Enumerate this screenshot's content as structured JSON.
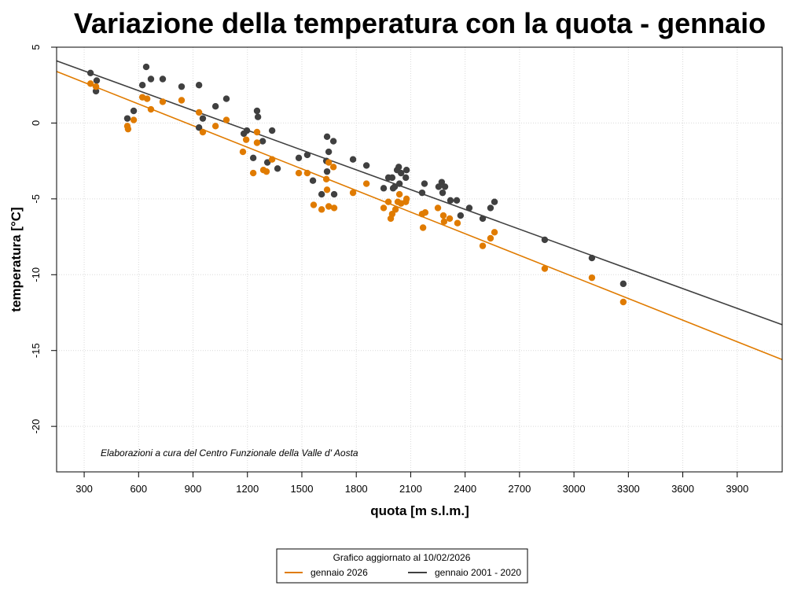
{
  "chart_data": {
    "type": "scatter",
    "title": "Variazione della temperatura con la quota -  gennaio",
    "xlabel": "quota [m s.l.m.]",
    "ylabel": "temperatura [°C]",
    "xlim": [
      148,
      4148
    ],
    "ylim": [
      -23,
      5
    ],
    "x_ticks": [
      300,
      600,
      900,
      1200,
      1500,
      1800,
      2100,
      2400,
      2700,
      3000,
      3300,
      3600,
      3900
    ],
    "y_ticks": [
      5,
      0,
      -5,
      -10,
      -15,
      -20
    ],
    "grid": true,
    "annotation": "Elaborazioni a cura del Centro Funzionale della Valle d' Aosta",
    "legend": {
      "placement": "bottom-center",
      "title": "Grafico aggiornato al 10/02/2026",
      "entries": [
        {
          "label": "gennaio 2026",
          "color": "#E07B00"
        },
        {
          "label": "gennaio 2001 - 2020",
          "color": "#404040"
        }
      ]
    },
    "series": [
      {
        "name": "gennaio 2001 - 2020",
        "color": "#404040",
        "trend_line": {
          "x": [
            148,
            4148
          ],
          "y": [
            4.1,
            -13.3
          ]
        },
        "points": [
          [
            335,
            3.3
          ],
          [
            369,
            2.8
          ],
          [
            365,
            2.1
          ],
          [
            538,
            0.3
          ],
          [
            573,
            0.8
          ],
          [
            642,
            3.7
          ],
          [
            621,
            2.5
          ],
          [
            668,
            2.9
          ],
          [
            733,
            2.9
          ],
          [
            837,
            2.4
          ],
          [
            933,
            2.5
          ],
          [
            933,
            -0.3
          ],
          [
            954,
            0.3
          ],
          [
            1024,
            1.1
          ],
          [
            1084,
            1.6
          ],
          [
            1180,
            -0.7
          ],
          [
            1197,
            -0.5
          ],
          [
            1232,
            -2.3
          ],
          [
            1253,
            0.8
          ],
          [
            1258,
            0.4
          ],
          [
            1284,
            -1.2
          ],
          [
            1310,
            -2.6
          ],
          [
            1336,
            -0.5
          ],
          [
            1366,
            -3.0
          ],
          [
            1483,
            -2.3
          ],
          [
            1530,
            -2.1
          ],
          [
            1561,
            -3.8
          ],
          [
            1609,
            -4.7
          ],
          [
            1639,
            -0.9
          ],
          [
            1648,
            -1.9
          ],
          [
            1639,
            -3.2
          ],
          [
            1635,
            -2.5
          ],
          [
            1674,
            -1.2
          ],
          [
            1678,
            -4.7
          ],
          [
            1782,
            -2.4
          ],
          [
            1856,
            -2.8
          ],
          [
            1951,
            -4.3
          ],
          [
            1977,
            -3.6
          ],
          [
            1998,
            -3.6
          ],
          [
            2012,
            -4.2
          ],
          [
            2025,
            -3.1
          ],
          [
            2034,
            -2.9
          ],
          [
            2047,
            -3.3
          ],
          [
            2077,
            -3.1
          ],
          [
            2073,
            -3.6
          ],
          [
            2038,
            -4.0
          ],
          [
            2003,
            -4.3
          ],
          [
            2163,
            -4.6
          ],
          [
            2176,
            -4.0
          ],
          [
            2254,
            -4.2
          ],
          [
            2271,
            -3.9
          ],
          [
            2289,
            -4.2
          ],
          [
            2276,
            -4.6
          ],
          [
            2319,
            -5.1
          ],
          [
            2354,
            -5.1
          ],
          [
            2375,
            -6.1
          ],
          [
            2423,
            -5.6
          ],
          [
            2497,
            -6.3
          ],
          [
            2540,
            -5.6
          ],
          [
            2562,
            -5.2
          ],
          [
            2839,
            -7.7
          ],
          [
            3099,
            -8.9
          ],
          [
            3272,
            -10.6
          ]
        ]
      },
      {
        "name": "gennaio 2026",
        "color": "#E07B00",
        "trend_line": {
          "x": [
            148,
            4148
          ],
          "y": [
            3.4,
            -15.6
          ]
        },
        "points": [
          [
            335,
            2.6
          ],
          [
            365,
            2.4
          ],
          [
            538,
            -0.2
          ],
          [
            542,
            -0.4
          ],
          [
            573,
            0.2
          ],
          [
            621,
            1.7
          ],
          [
            647,
            1.6
          ],
          [
            668,
            0.9
          ],
          [
            733,
            1.4
          ],
          [
            837,
            1.5
          ],
          [
            933,
            0.7
          ],
          [
            954,
            -0.6
          ],
          [
            1024,
            -0.2
          ],
          [
            1084,
            0.2
          ],
          [
            1175,
            -1.9
          ],
          [
            1193,
            -1.1
          ],
          [
            1232,
            -3.3
          ],
          [
            1253,
            -0.6
          ],
          [
            1253,
            -1.3
          ],
          [
            1288,
            -3.1
          ],
          [
            1305,
            -3.2
          ],
          [
            1336,
            -2.4
          ],
          [
            1483,
            -3.3
          ],
          [
            1530,
            -3.3
          ],
          [
            1565,
            -5.4
          ],
          [
            1609,
            -5.7
          ],
          [
            1648,
            -5.5
          ],
          [
            1678,
            -5.6
          ],
          [
            1635,
            -3.7
          ],
          [
            1639,
            -4.4
          ],
          [
            1648,
            -2.6
          ],
          [
            1674,
            -2.9
          ],
          [
            1782,
            -4.6
          ],
          [
            1856,
            -4.0
          ],
          [
            1951,
            -5.6
          ],
          [
            1977,
            -5.2
          ],
          [
            1990,
            -6.3
          ],
          [
            1998,
            -6.0
          ],
          [
            2016,
            -5.7
          ],
          [
            2029,
            -5.2
          ],
          [
            2038,
            -4.7
          ],
          [
            2047,
            -5.3
          ],
          [
            2077,
            -5.0
          ],
          [
            2073,
            -5.2
          ],
          [
            2163,
            -6.0
          ],
          [
            2168,
            -6.9
          ],
          [
            2180,
            -5.9
          ],
          [
            2250,
            -5.6
          ],
          [
            2280,
            -6.1
          ],
          [
            2284,
            -6.5
          ],
          [
            2315,
            -6.3
          ],
          [
            2358,
            -6.6
          ],
          [
            2497,
            -8.1
          ],
          [
            2540,
            -7.6
          ],
          [
            2562,
            -7.2
          ],
          [
            2839,
            -9.6
          ],
          [
            3099,
            -10.2
          ],
          [
            3272,
            -11.8
          ]
        ]
      }
    ]
  }
}
